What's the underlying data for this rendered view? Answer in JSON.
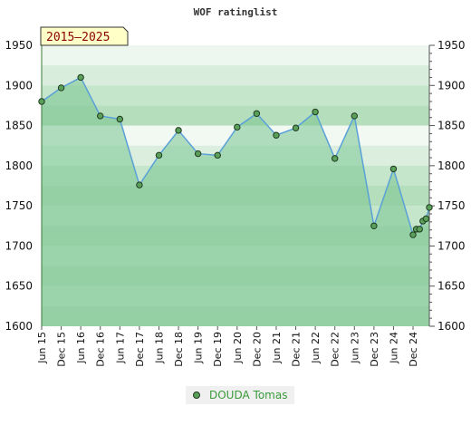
{
  "chart_data": {
    "type": "line",
    "title": "WOF ratinglist",
    "badge": "2015–2025",
    "ylim": [
      1600,
      1950
    ],
    "yticks": [
      1600,
      1650,
      1700,
      1750,
      1800,
      1850,
      1900,
      1950
    ],
    "x_tick_labels": [
      "Jun 15",
      "Dec 15",
      "Jun 16",
      "Dec 16",
      "Jun 17",
      "Dec 17",
      "Jun 18",
      "Dec 18",
      "Jun 19",
      "Dec 19",
      "Jun 20",
      "Dec 20",
      "Jun 21",
      "Dec 21",
      "Jun 22",
      "Dec 22",
      "Jun 23",
      "Dec 23",
      "Jun 24",
      "Dec 24"
    ],
    "series": [
      {
        "name": "DOUDA Tomas",
        "x": [
          "2015-06",
          "2015-12",
          "2016-06",
          "2016-12",
          "2017-06",
          "2017-12",
          "2018-06",
          "2018-12",
          "2019-06",
          "2019-12",
          "2020-06",
          "2020-12",
          "2021-06",
          "2021-12",
          "2022-06",
          "2022-12",
          "2023-06",
          "2023-12",
          "2024-06",
          "2024-12",
          "2025-01",
          "2025-02",
          "2025-03",
          "2025-04",
          "2025-05"
        ],
        "values": [
          1880,
          1897,
          1910,
          1862,
          1858,
          1776,
          1813,
          1844,
          1815,
          1813,
          1848,
          1865,
          1838,
          1847,
          1867,
          1809,
          1862,
          1725,
          1796,
          1714,
          1721,
          1721,
          1731,
          1734,
          1748
        ]
      }
    ],
    "colors": {
      "band_light": "#ffffff",
      "band_medium": "#a8d8b0",
      "band_dark": "#5cb870",
      "line": "#5aa0d8",
      "fill": "#78c490",
      "marker": "#5aa05a",
      "legend_text": "#3a9a3a"
    }
  }
}
